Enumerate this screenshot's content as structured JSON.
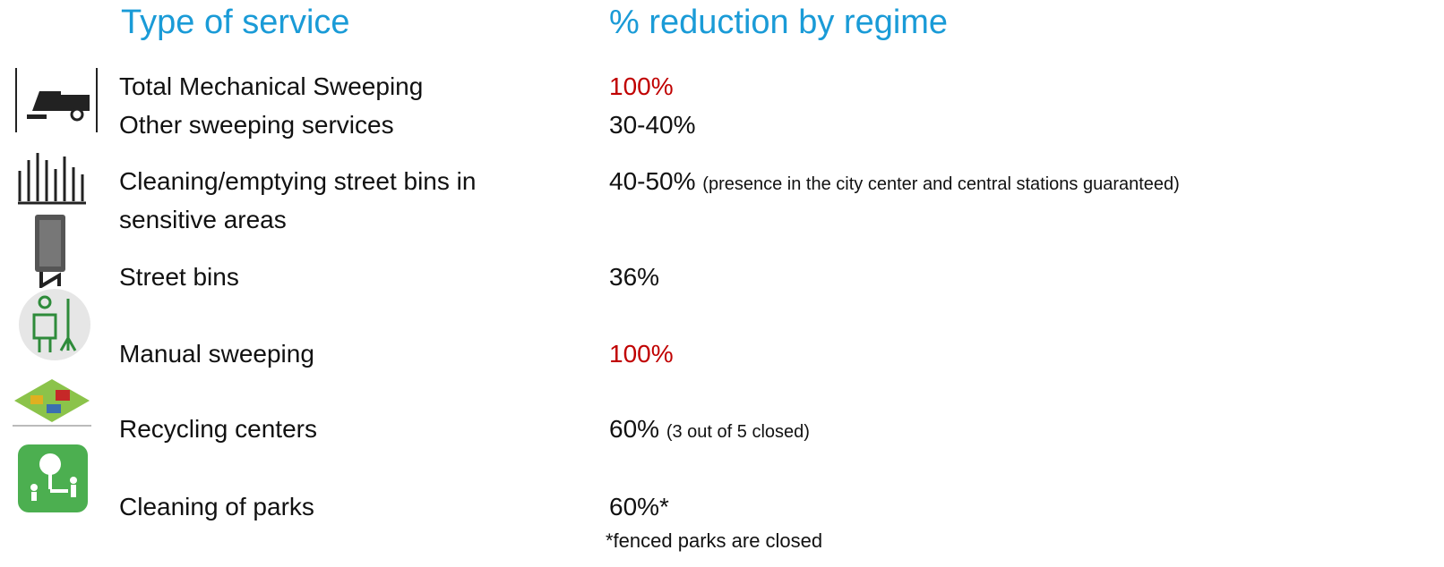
{
  "header": {
    "service": "Type of service",
    "reduction": "% reduction by regime"
  },
  "rows": [
    {
      "service": "Total Mechanical Sweeping",
      "reduction": "100%",
      "color": "#c00000"
    },
    {
      "service": "Other sweeping services",
      "reduction": "30-40%"
    },
    {
      "service": "Cleaning/emptying street bins in sensitive areas",
      "reduction": "40-50%",
      "note": "(presence in the city center and central stations guaranteed)"
    },
    {
      "service": "Street bins",
      "reduction": "36%"
    },
    {
      "service": "Manual sweeping",
      "reduction": "100%",
      "color": "#c00000"
    },
    {
      "service": "Recycling centers",
      "reduction": "60%",
      "note": "(3 out of 5 closed)"
    },
    {
      "service": "Cleaning of parks",
      "reduction": "60%*"
    }
  ],
  "footnote": "*fenced parks are closed"
}
